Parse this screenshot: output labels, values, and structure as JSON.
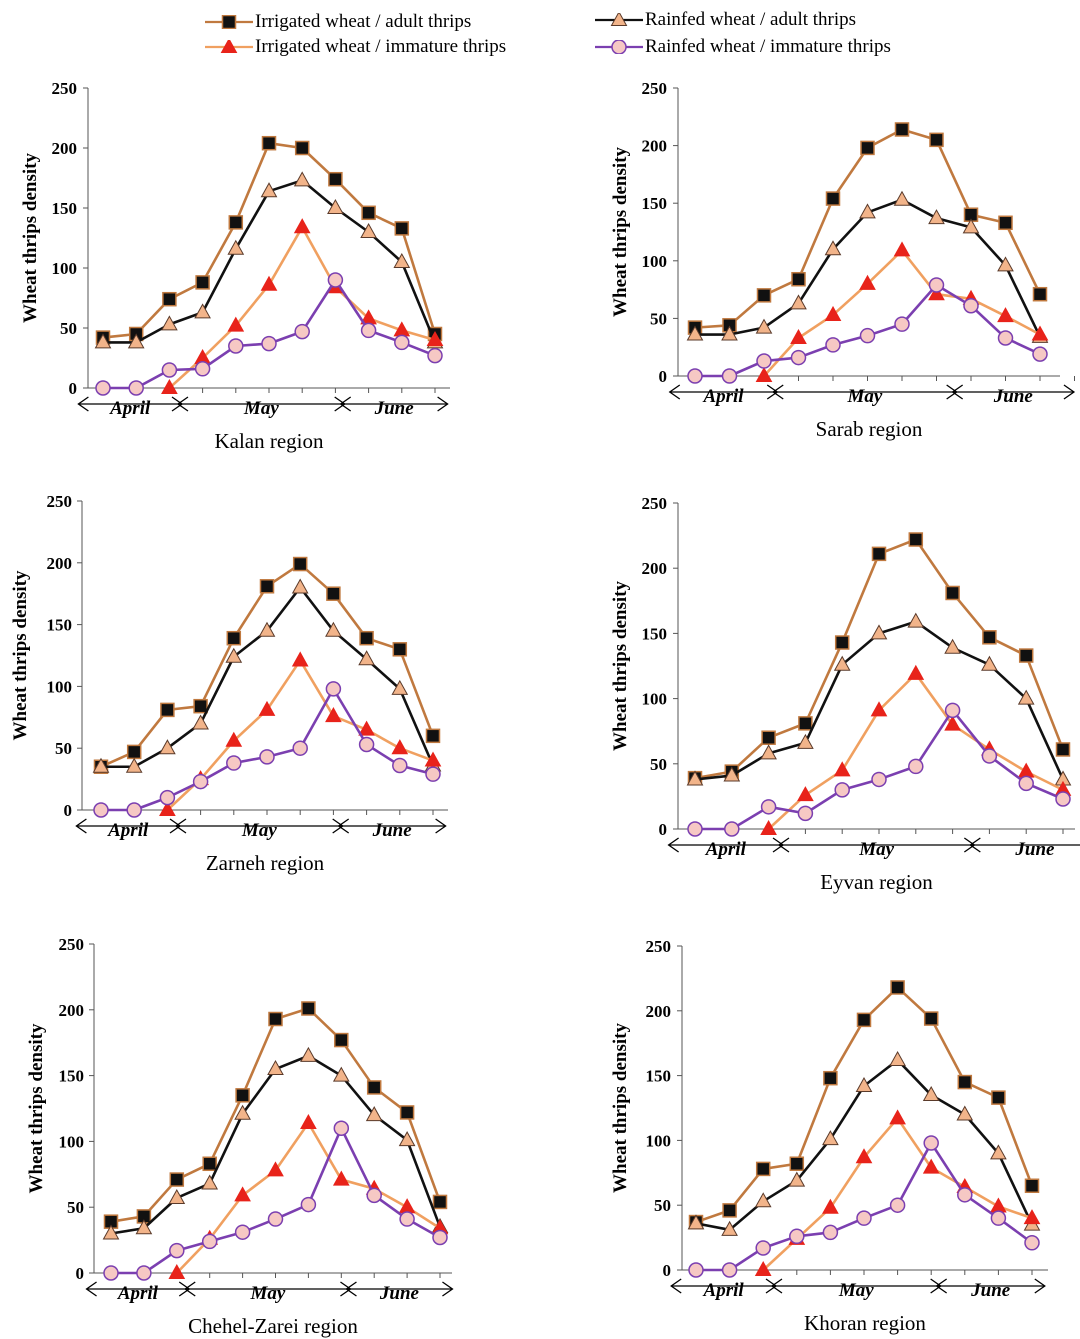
{
  "legend": {
    "items": [
      {
        "label": "Irrigated wheat / adult thrips",
        "series": "irr_adult"
      },
      {
        "label": "Irrigated wheat / immature thrips",
        "series": "irr_imm"
      },
      {
        "label": "Rainfed wheat / adult thrips",
        "series": "rain_adult"
      },
      {
        "label": "Rainfed wheat / immature thrips",
        "series": "rain_imm"
      }
    ]
  },
  "styles": {
    "irr_adult": {
      "line": "#c0793f",
      "marker": "square",
      "fill": "#111111"
    },
    "irr_imm": {
      "line": "#f0a060",
      "marker": "triangle",
      "fill": "#e8231a"
    },
    "rain_adult": {
      "line": "#111111",
      "marker": "triangle",
      "fill": "#f2b48a"
    },
    "rain_imm": {
      "line": "#7b3fb0",
      "marker": "circle",
      "fill": "#f6c8c4"
    }
  },
  "chart_data": [
    {
      "type": "line",
      "title": "Kalan region",
      "ylabel": "Wheat thrips density",
      "ylim": [
        0,
        250
      ],
      "yticks": [
        0,
        50,
        100,
        150,
        200,
        250
      ],
      "months": [
        "April",
        "May",
        "June"
      ],
      "x": [
        1,
        2,
        3,
        4,
        5,
        6,
        7,
        8,
        9,
        10,
        11
      ],
      "series": [
        {
          "name": "Irrigated wheat / adult thrips",
          "key": "irr_adult",
          "values": [
            42,
            45,
            74,
            88,
            138,
            204,
            200,
            174,
            146,
            133,
            45
          ]
        },
        {
          "name": "Rainfed wheat / adult thrips",
          "key": "rain_adult",
          "values": [
            38,
            38,
            53,
            63,
            116,
            164,
            173,
            150,
            130,
            105,
            38
          ]
        },
        {
          "name": "Irrigated wheat / immature thrips",
          "key": "irr_imm",
          "values": [
            null,
            null,
            0,
            25,
            52,
            86,
            134,
            84,
            58,
            48,
            40
          ]
        },
        {
          "name": "Rainfed wheat / immature thrips",
          "key": "rain_imm",
          "values": [
            0,
            0,
            15,
            16,
            35,
            37,
            47,
            90,
            48,
            38,
            27
          ]
        }
      ]
    },
    {
      "type": "line",
      "title": "Sarab region",
      "ylabel": "Wheat thrips density",
      "ylim": [
        0,
        250
      ],
      "yticks": [
        0,
        50,
        100,
        150,
        200,
        250
      ],
      "months": [
        "April",
        "May",
        "June"
      ],
      "x": [
        1,
        2,
        3,
        4,
        5,
        6,
        7,
        8,
        9,
        10,
        11,
        12
      ],
      "series": [
        {
          "name": "Irrigated wheat / adult thrips",
          "key": "irr_adult",
          "values": [
            42,
            44,
            70,
            84,
            154,
            198,
            214,
            205,
            140,
            133,
            71,
            null
          ]
        },
        {
          "name": "Rainfed wheat / adult thrips",
          "key": "rain_adult",
          "values": [
            36,
            36,
            42,
            63,
            110,
            142,
            153,
            137,
            129,
            96,
            34,
            null
          ]
        },
        {
          "name": "Irrigated wheat / immature thrips",
          "key": "irr_imm",
          "values": [
            null,
            null,
            0,
            33,
            53,
            80,
            109,
            71,
            67,
            52,
            36,
            null
          ]
        },
        {
          "name": "Rainfed wheat / immature thrips",
          "key": "rain_imm",
          "values": [
            0,
            0,
            13,
            16,
            27,
            35,
            45,
            79,
            61,
            33,
            19,
            null
          ]
        }
      ]
    },
    {
      "type": "line",
      "title": "Zarneh region",
      "ylabel": "Wheat thrips density",
      "ylim": [
        0,
        250
      ],
      "yticks": [
        0,
        50,
        100,
        150,
        200,
        250
      ],
      "months": [
        "April",
        "May",
        "June"
      ],
      "x": [
        1,
        2,
        3,
        4,
        5,
        6,
        7,
        8,
        9,
        10,
        11
      ],
      "series": [
        {
          "name": "Irrigated wheat / adult thrips",
          "key": "irr_adult",
          "values": [
            35,
            47,
            81,
            84,
            139,
            181,
            199,
            175,
            139,
            130,
            60
          ]
        },
        {
          "name": "Rainfed wheat / adult thrips",
          "key": "rain_adult",
          "values": [
            35,
            35,
            50,
            70,
            124,
            145,
            180,
            145,
            122,
            98,
            36
          ]
        },
        {
          "name": "Irrigated wheat / immature thrips",
          "key": "irr_imm",
          "values": [
            null,
            null,
            0,
            25,
            56,
            81,
            121,
            76,
            65,
            50,
            40
          ]
        },
        {
          "name": "Rainfed wheat / immature thrips",
          "key": "rain_imm",
          "values": [
            0,
            0,
            10,
            23,
            38,
            43,
            50,
            98,
            53,
            36,
            29
          ]
        }
      ]
    },
    {
      "type": "line",
      "title": "Eyvan region",
      "ylabel": "Wheat thrips density",
      "ylim": [
        0,
        250
      ],
      "yticks": [
        0,
        50,
        100,
        150,
        200,
        250
      ],
      "months": [
        "April",
        "May",
        "June"
      ],
      "x": [
        1,
        2,
        3,
        4,
        5,
        6,
        7,
        8,
        9,
        10,
        11,
        12
      ],
      "series": [
        {
          "name": "Irrigated wheat / adult thrips",
          "key": "irr_adult",
          "values": [
            39,
            44,
            70,
            81,
            143,
            211,
            222,
            181,
            147,
            133,
            61,
            null
          ]
        },
        {
          "name": "Rainfed wheat / adult thrips",
          "key": "rain_adult",
          "values": [
            38,
            41,
            58,
            66,
            126,
            150,
            159,
            139,
            126,
            100,
            38,
            null
          ]
        },
        {
          "name": "Irrigated wheat / immature thrips",
          "key": "irr_imm",
          "values": [
            null,
            null,
            0,
            26,
            45,
            91,
            119,
            80,
            61,
            44,
            30,
            null
          ]
        },
        {
          "name": "Rainfed wheat / immature thrips",
          "key": "rain_imm",
          "values": [
            0,
            0,
            17,
            12,
            30,
            38,
            48,
            91,
            56,
            35,
            23,
            null
          ]
        }
      ]
    },
    {
      "type": "line",
      "title": "Chehel-Zarei region",
      "ylabel": "Wheat thrips density",
      "ylim": [
        0,
        250
      ],
      "yticks": [
        0,
        50,
        100,
        150,
        200,
        250
      ],
      "months": [
        "April",
        "May",
        "June"
      ],
      "x": [
        1,
        2,
        3,
        4,
        5,
        6,
        7,
        8,
        9,
        10,
        11
      ],
      "series": [
        {
          "name": "Irrigated wheat / adult thrips",
          "key": "irr_adult",
          "values": [
            39,
            43,
            71,
            83,
            135,
            193,
            201,
            177,
            141,
            122,
            54
          ]
        },
        {
          "name": "Rainfed wheat / adult thrips",
          "key": "rain_adult",
          "values": [
            30,
            34,
            57,
            68,
            121,
            155,
            165,
            150,
            120,
            101,
            35
          ]
        },
        {
          "name": "Irrigated wheat / immature thrips",
          "key": "irr_imm",
          "values": [
            null,
            null,
            0,
            26,
            59,
            78,
            114,
            71,
            64,
            50,
            34
          ]
        },
        {
          "name": "Rainfed wheat / immature thrips",
          "key": "rain_imm",
          "values": [
            0,
            0,
            17,
            24,
            31,
            41,
            52,
            110,
            59,
            41,
            27
          ]
        }
      ]
    },
    {
      "type": "line",
      "title": "Khoran region",
      "ylabel": "Wheat thrips density",
      "ylim": [
        0,
        250
      ],
      "yticks": [
        0,
        50,
        100,
        150,
        200,
        250
      ],
      "months": [
        "April",
        "May",
        "June"
      ],
      "x": [
        1,
        2,
        3,
        4,
        5,
        6,
        7,
        8,
        9,
        10,
        11
      ],
      "series": [
        {
          "name": "Irrigated wheat / adult thrips",
          "key": "irr_adult",
          "values": [
            37,
            46,
            78,
            82,
            148,
            193,
            218,
            194,
            145,
            133,
            65
          ]
        },
        {
          "name": "Rainfed wheat / adult thrips",
          "key": "rain_adult",
          "values": [
            36,
            31,
            53,
            69,
            101,
            142,
            162,
            135,
            120,
            90,
            35
          ]
        },
        {
          "name": "Irrigated wheat / immature thrips",
          "key": "irr_imm",
          "values": [
            null,
            null,
            0,
            24,
            48,
            87,
            117,
            79,
            64,
            49,
            40
          ]
        },
        {
          "name": "Rainfed wheat / immature thrips",
          "key": "rain_imm",
          "values": [
            0,
            0,
            17,
            26,
            29,
            40,
            50,
            98,
            58,
            40,
            21
          ]
        }
      ]
    }
  ]
}
